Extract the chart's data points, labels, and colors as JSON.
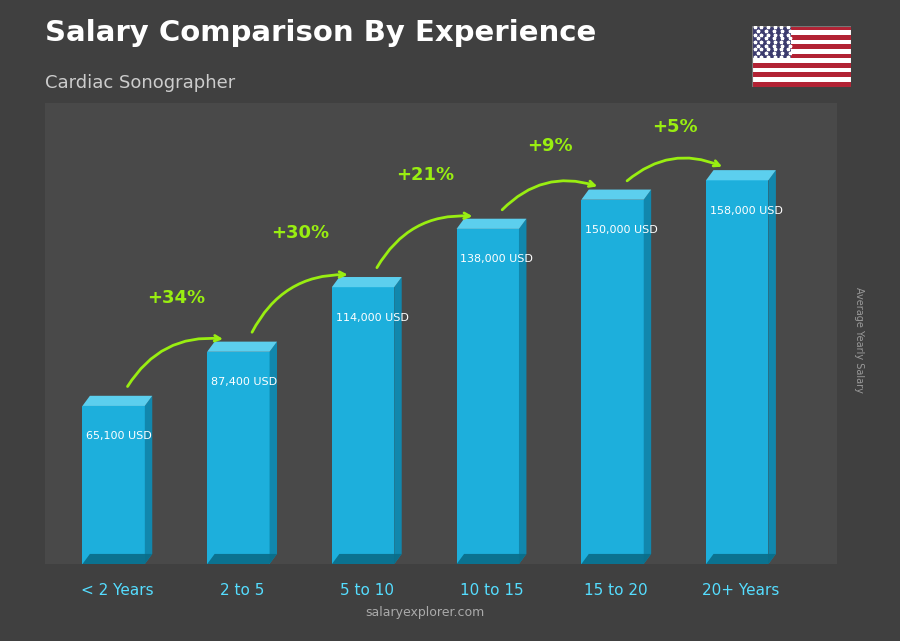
{
  "title": "Salary Comparison By Experience",
  "subtitle": "Cardiac Sonographer",
  "categories": [
    "< 2 Years",
    "2 to 5",
    "5 to 10",
    "10 to 15",
    "15 to 20",
    "20+ Years"
  ],
  "values": [
    65100,
    87400,
    114000,
    138000,
    150000,
    158000
  ],
  "salary_labels": [
    "65,100 USD",
    "87,400 USD",
    "114,000 USD",
    "138,000 USD",
    "150,000 USD",
    "158,000 USD"
  ],
  "pct_changes": [
    "+34%",
    "+30%",
    "+21%",
    "+9%",
    "+5%"
  ],
  "bar_face_color": "#1ab8e8",
  "bar_top_color": "#5dd4f5",
  "bar_side_color": "#0d8db5",
  "bar_bottom_color": "#0a6e8a",
  "bg_color": "#404040",
  "title_color": "#ffffff",
  "subtitle_color": "#cccccc",
  "salary_label_color": "#ffffff",
  "pct_color": "#99ee11",
  "xlabel_color": "#55ddff",
  "watermark_color": "#aaaaaa",
  "ylabel_text": "Average Yearly Salary",
  "ylabel_color": "#999999",
  "watermark": "salaryexplorer.com",
  "max_val": 190000,
  "bar_positions": [
    0,
    1,
    2,
    3,
    4,
    5
  ],
  "bar_width": 0.5
}
